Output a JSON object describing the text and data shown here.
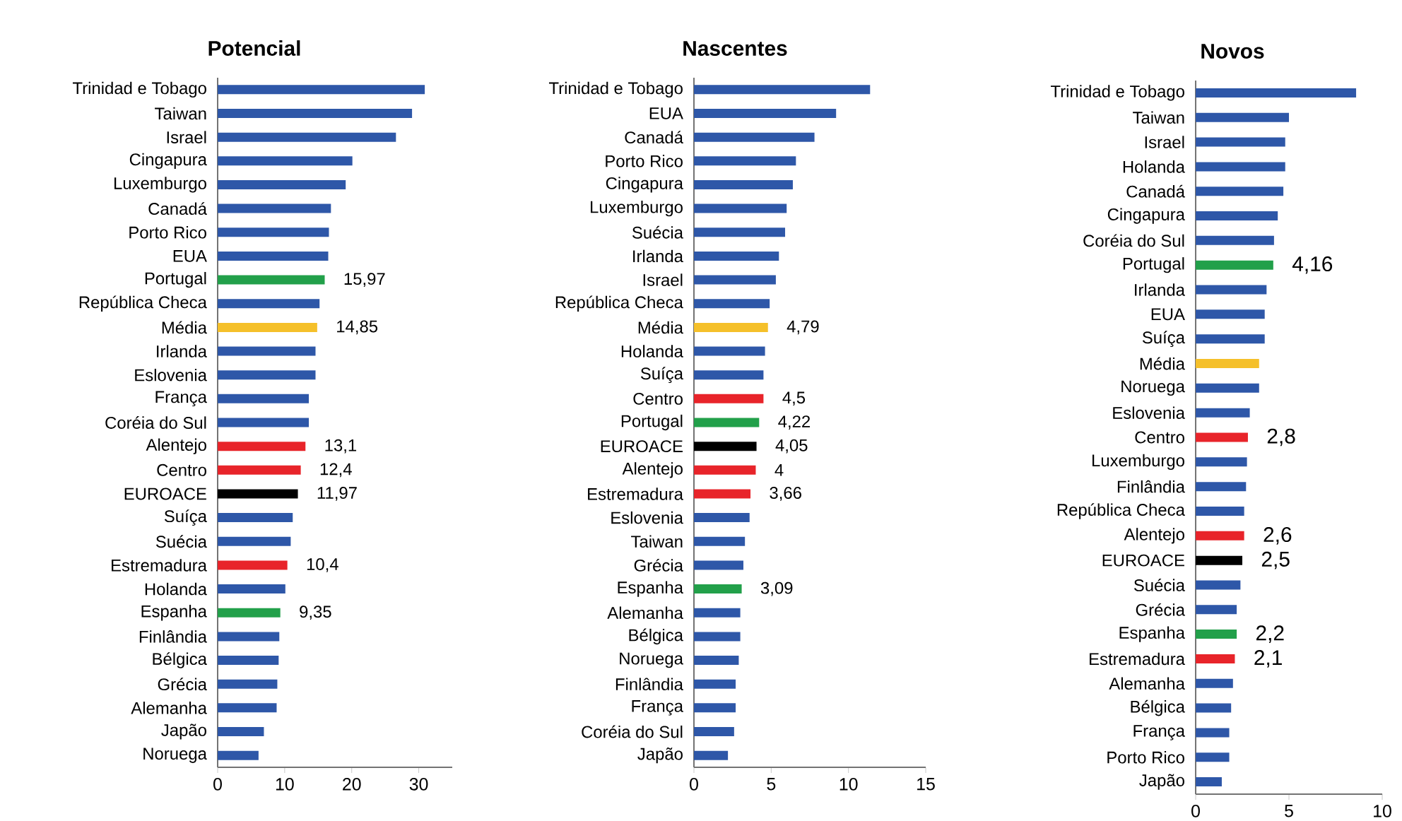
{
  "chart_data": [
    {
      "type": "bar",
      "orientation": "horizontal",
      "title": "Potencial",
      "categories": [
        "Trinidad e Tobago",
        "Taiwan",
        "Israel",
        "Cingapura",
        "Luxemburgo",
        "Canadá",
        "Porto Rico",
        "EUA",
        "Portugal",
        "República Checa",
        "Média",
        "Irlanda",
        "Eslovenia",
        "França",
        "Coréia do Sul",
        "Alentejo",
        "Centro",
        "EUROACE",
        "Suíça",
        "Suécia",
        "Estremadura",
        "Holanda",
        "Espanha",
        "Finlândia",
        "Bélgica",
        "Grécia",
        "Alemanha",
        "Japão",
        "Noruega"
      ],
      "values": [
        30.9,
        29.0,
        26.6,
        20.1,
        19.1,
        16.9,
        16.6,
        16.5,
        15.97,
        15.2,
        14.85,
        14.6,
        14.6,
        13.6,
        13.6,
        13.1,
        12.4,
        11.97,
        11.2,
        10.9,
        10.4,
        10.1,
        9.35,
        9.2,
        9.1,
        8.9,
        8.8,
        6.9,
        6.1
      ],
      "colors": [
        "#2e57a8",
        "#2e57a8",
        "#2e57a8",
        "#2e57a8",
        "#2e57a8",
        "#2e57a8",
        "#2e57a8",
        "#2e57a8",
        "#22a04a",
        "#2e57a8",
        "#f5c02a",
        "#2e57a8",
        "#2e57a8",
        "#2e57a8",
        "#2e57a8",
        "#e8242a",
        "#e8242a",
        "#000000",
        "#2e57a8",
        "#2e57a8",
        "#e8242a",
        "#2e57a8",
        "#22a04a",
        "#2e57a8",
        "#2e57a8",
        "#2e57a8",
        "#2e57a8",
        "#2e57a8",
        "#2e57a8"
      ],
      "value_labels": [
        null,
        null,
        null,
        null,
        null,
        null,
        null,
        null,
        "15,97",
        null,
        "14,85",
        null,
        null,
        null,
        null,
        "13,1",
        "12,4",
        "11,97",
        null,
        null,
        "10,4",
        null,
        "9,35",
        null,
        null,
        null,
        null,
        null,
        null
      ],
      "xlim": [
        0,
        35
      ],
      "xticks": [
        0,
        10,
        20,
        30
      ]
    },
    {
      "type": "bar",
      "orientation": "horizontal",
      "title": "Nascentes",
      "categories": [
        "Trinidad e Tobago",
        "EUA",
        "Canadá",
        "Porto Rico",
        "Cingapura",
        "Luxemburgo",
        "Suécia",
        "Irlanda",
        "Israel",
        "República Checa",
        "Média",
        "Holanda",
        "Suíça",
        "Centro",
        "Portugal",
        "EUROACE",
        "Alentejo",
        "Estremadura",
        "Eslovenia",
        "Taiwan",
        "Grécia",
        "Espanha",
        "Alemanha",
        "Bélgica",
        "Noruega",
        "Finlândia",
        "França",
        "Coréia do Sul",
        "Japão"
      ],
      "values": [
        11.4,
        9.2,
        7.8,
        6.6,
        6.4,
        6.0,
        5.9,
        5.5,
        5.3,
        4.9,
        4.79,
        4.6,
        4.5,
        4.5,
        4.22,
        4.05,
        4,
        3.66,
        3.6,
        3.3,
        3.2,
        3.09,
        3.0,
        3.0,
        2.9,
        2.7,
        2.7,
        2.6,
        2.2
      ],
      "colors": [
        "#2e57a8",
        "#2e57a8",
        "#2e57a8",
        "#2e57a8",
        "#2e57a8",
        "#2e57a8",
        "#2e57a8",
        "#2e57a8",
        "#2e57a8",
        "#2e57a8",
        "#f5c02a",
        "#2e57a8",
        "#2e57a8",
        "#e8242a",
        "#22a04a",
        "#000000",
        "#e8242a",
        "#e8242a",
        "#2e57a8",
        "#2e57a8",
        "#2e57a8",
        "#22a04a",
        "#2e57a8",
        "#2e57a8",
        "#2e57a8",
        "#2e57a8",
        "#2e57a8",
        "#2e57a8",
        "#2e57a8"
      ],
      "value_labels": [
        null,
        null,
        null,
        null,
        null,
        null,
        null,
        null,
        null,
        null,
        "4,79",
        null,
        null,
        "4,5",
        "4,22",
        "4,05",
        "4",
        "3,66",
        null,
        null,
        null,
        "3,09",
        null,
        null,
        null,
        null,
        null,
        null,
        null
      ],
      "xlim": [
        0,
        15
      ],
      "xticks": [
        0,
        5,
        10,
        15
      ]
    },
    {
      "type": "bar",
      "orientation": "horizontal",
      "title": "Novos",
      "categories": [
        "Trinidad e Tobago",
        "Taiwan",
        "Israel",
        "Holanda",
        "Canadá",
        "Cingapura",
        "Coréia do Sul",
        "Portugal",
        "Irlanda",
        "EUA",
        "Suíça",
        "Média",
        "Noruega",
        "Eslovenia",
        "Centro",
        "Luxemburgo",
        "Finlândia",
        "República Checa",
        "Alentejo",
        "EUROACE",
        "Suécia",
        "Grécia",
        "Espanha",
        "Estremadura",
        "Alemanha",
        "Bélgica",
        "França",
        "Porto Rico",
        "Japão"
      ],
      "values": [
        8.6,
        5.0,
        4.8,
        4.8,
        4.7,
        4.4,
        4.2,
        4.16,
        3.8,
        3.7,
        3.7,
        3.4,
        3.4,
        2.9,
        2.8,
        2.75,
        2.7,
        2.6,
        2.6,
        2.5,
        2.4,
        2.2,
        2.2,
        2.1,
        2.0,
        1.9,
        1.8,
        1.8,
        1.4
      ],
      "colors": [
        "#2e57a8",
        "#2e57a8",
        "#2e57a8",
        "#2e57a8",
        "#2e57a8",
        "#2e57a8",
        "#2e57a8",
        "#22a04a",
        "#2e57a8",
        "#2e57a8",
        "#2e57a8",
        "#f5c02a",
        "#2e57a8",
        "#2e57a8",
        "#e8242a",
        "#2e57a8",
        "#2e57a8",
        "#2e57a8",
        "#e8242a",
        "#000000",
        "#2e57a8",
        "#2e57a8",
        "#22a04a",
        "#e8242a",
        "#2e57a8",
        "#2e57a8",
        "#2e57a8",
        "#2e57a8",
        "#2e57a8"
      ],
      "value_labels": [
        null,
        null,
        null,
        null,
        null,
        null,
        null,
        "4,16",
        null,
        null,
        null,
        null,
        null,
        null,
        "2,8",
        null,
        null,
        null,
        "2,6",
        "2,5",
        null,
        null,
        "2,2",
        "2,1",
        null,
        null,
        null,
        null,
        null
      ],
      "xlim": [
        0,
        10
      ],
      "xticks": [
        0,
        5,
        10
      ]
    }
  ]
}
